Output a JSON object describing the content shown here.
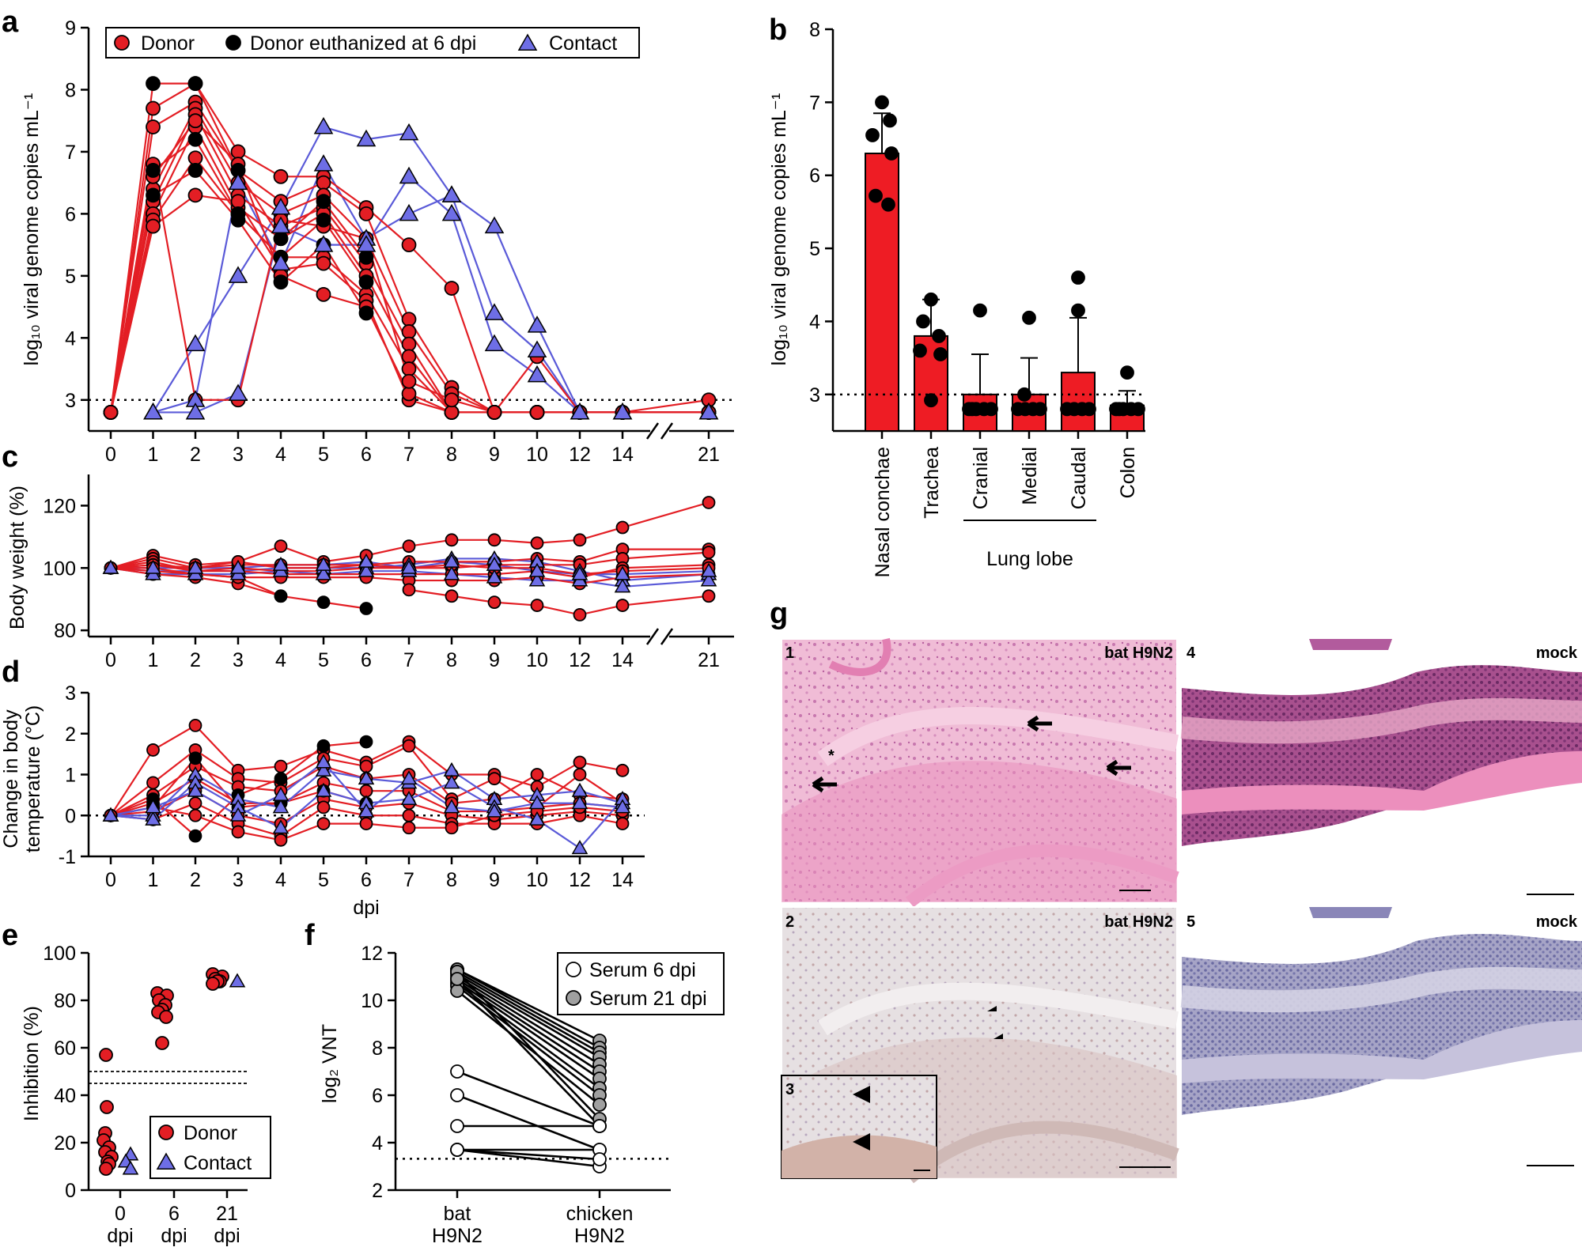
{
  "panels": {
    "a": "a",
    "b": "b",
    "c": "c",
    "d": "d",
    "e": "e",
    "f": "f",
    "g": "g"
  },
  "colors": {
    "donor": "#e31e24",
    "euthanized": "#000000",
    "contact": "#6e6ee6",
    "contact_line": "#5a5ad8",
    "bar": "#ee1c24",
    "grey_dot": "#a0a0a0",
    "he_bg": "#eeb6d2",
    "ihc_bg": "#e2dcdf"
  },
  "chart_data": [
    {
      "id": "a",
      "type": "line",
      "title": "",
      "ylabel": "log₁₀ viral genome copies mL⁻¹",
      "xlabel": "",
      "x_ticks": [
        "0",
        "1",
        "2",
        "3",
        "4",
        "5",
        "6",
        "7",
        "8",
        "9",
        "10",
        "12",
        "14",
        "21"
      ],
      "ylim": [
        2.5,
        9
      ],
      "y_ticks": [
        "3",
        "4",
        "5",
        "6",
        "7",
        "8",
        "9"
      ],
      "detection_limit": 3,
      "legend": [
        "Donor",
        "Donor euthanized at 6 dpi",
        "Contact"
      ],
      "series_group": "donor",
      "series": [
        {
          "name": "Donor",
          "values": [
            2.8,
            7.7,
            8.1,
            7.0,
            6.6,
            6.6,
            6.1,
            5.5,
            4.8,
            2.8,
            2.8,
            2.8,
            2.8,
            3.0
          ]
        },
        {
          "name": "Donor",
          "values": [
            2.8,
            7.4,
            7.8,
            6.7,
            6.2,
            6.5,
            6.0,
            4.3,
            3.2,
            2.8,
            2.8,
            2.8,
            2.8,
            2.8
          ]
        },
        {
          "name": "Donor",
          "values": [
            2.8,
            6.4,
            7.7,
            6.5,
            6.0,
            6.3,
            5.6,
            4.1,
            3.1,
            2.8,
            3.7,
            2.8,
            2.8,
            2.8
          ]
        },
        {
          "name": "Donor",
          "values": [
            2.8,
            6.2,
            7.6,
            6.3,
            5.8,
            6.1,
            5.2,
            3.9,
            2.8,
            2.8,
            2.8,
            2.8,
            2.8,
            2.8
          ]
        },
        {
          "name": "Donor",
          "values": [
            2.8,
            6.0,
            7.4,
            6.1,
            5.6,
            6.0,
            5.0,
            3.7,
            2.8,
            2.8,
            2.8,
            2.8,
            2.8,
            2.8
          ]
        },
        {
          "name": "Donor",
          "values": [
            2.8,
            5.9,
            6.9,
            6.0,
            5.3,
            5.3,
            4.7,
            3.5,
            2.8,
            2.8,
            2.8,
            2.8,
            2.8,
            2.8
          ]
        },
        {
          "name": "Donor",
          "values": [
            2.8,
            5.8,
            6.3,
            6.2,
            5.1,
            5.2,
            4.6,
            3.0,
            2.8,
            2.8,
            2.8,
            2.8,
            2.8,
            2.8
          ]
        },
        {
          "name": "Donor",
          "values": [
            2.8,
            6.6,
            7.5,
            6.8,
            5.0,
            4.7,
            4.5,
            3.1,
            2.8,
            2.8,
            2.8,
            2.8,
            2.8,
            2.8
          ]
        },
        {
          "name": "Donor",
          "values": [
            2.8,
            6.8,
            3.0,
            3.0,
            5.9,
            5.8,
            5.6,
            3.3,
            3.0,
            2.8,
            2.8,
            2.8,
            2.8,
            2.8
          ]
        }
      ],
      "euthanized": [
        {
          "name": "Donor euthanized at 6 dpi",
          "values": [
            2.8,
            8.1,
            8.1,
            6.7,
            5.6,
            6.2,
            5.3
          ]
        },
        {
          "name": "Donor euthanized at 6 dpi",
          "values": [
            2.8,
            6.7,
            7.2,
            6.0,
            5.3,
            5.9,
            4.9
          ]
        },
        {
          "name": "Donor euthanized at 6 dpi",
          "values": [
            2.8,
            6.3,
            6.7,
            5.9,
            4.9,
            5.5,
            4.4
          ]
        }
      ],
      "contact": [
        {
          "name": "Contact",
          "values": [
            null,
            2.8,
            3.9,
            5.0,
            6.1,
            7.4,
            7.2,
            7.3,
            6.3,
            5.8,
            4.2,
            2.8,
            2.8,
            2.8
          ]
        },
        {
          "name": "Contact",
          "values": [
            null,
            2.8,
            3.0,
            6.5,
            5.2,
            6.8,
            5.6,
            6.0,
            6.3,
            4.4,
            3.8,
            2.8,
            2.8,
            2.8
          ]
        },
        {
          "name": "Contact",
          "values": [
            null,
            2.8,
            2.8,
            3.1,
            5.8,
            5.5,
            5.5,
            6.6,
            6.0,
            3.9,
            3.4,
            2.8,
            2.8,
            2.8
          ]
        }
      ]
    },
    {
      "id": "b",
      "type": "bar",
      "ylabel": "log₁₀ viral genome copies mL⁻¹",
      "categories": [
        "Nasal conchae",
        "Trachea",
        "Cranial",
        "Medial",
        "Caudal",
        "Colon"
      ],
      "group_label": "Lung lobe",
      "values": [
        6.3,
        3.8,
        3.0,
        3.0,
        3.3,
        2.85
      ],
      "errors": [
        0.55,
        0.5,
        0.55,
        0.5,
        0.75,
        0.2
      ],
      "points": [
        [
          7.0,
          6.75,
          6.55,
          6.3,
          5.72,
          5.6
        ],
        [
          4.3,
          4.0,
          3.8,
          3.6,
          3.55,
          2.92
        ],
        [
          4.15,
          2.8,
          2.8,
          2.8,
          2.8,
          2.8
        ],
        [
          4.05,
          3.0,
          2.8,
          2.8,
          2.8,
          2.8
        ],
        [
          4.6,
          4.15,
          2.8,
          2.8,
          2.8,
          2.8
        ],
        [
          3.3,
          2.8,
          2.8,
          2.8,
          2.8,
          2.8
        ]
      ],
      "ylim": [
        2.5,
        8
      ],
      "y_ticks": [
        "3",
        "4",
        "5",
        "6",
        "7",
        "8"
      ],
      "detection_limit": 3
    },
    {
      "id": "c",
      "type": "line",
      "ylabel": "Body weight (%)",
      "x_ticks": [
        "0",
        "1",
        "2",
        "3",
        "4",
        "5",
        "6",
        "7",
        "8",
        "9",
        "10",
        "12",
        "14",
        "21"
      ],
      "ylim": [
        78,
        130
      ],
      "y_ticks": [
        "80",
        "100",
        "120"
      ],
      "series": [
        {
          "group": "donor",
          "values": [
            100,
            104,
            101,
            102,
            107,
            102,
            104,
            107,
            109,
            109,
            108,
            109,
            113,
            121
          ]
        },
        {
          "group": "donor",
          "values": [
            100,
            103,
            100,
            101,
            101,
            101,
            101,
            102,
            102,
            102,
            103,
            102,
            106,
            106
          ]
        },
        {
          "group": "donor",
          "values": [
            100,
            102,
            99,
            100,
            99,
            99,
            100,
            100,
            100,
            101,
            101,
            101,
            103,
            105
          ]
        },
        {
          "group": "donor",
          "values": [
            100,
            101,
            99,
            99,
            98,
            98,
            98,
            98,
            98,
            98,
            99,
            97,
            100,
            101
          ]
        },
        {
          "group": "donor",
          "values": [
            100,
            99,
            98,
            97,
            97,
            97,
            97,
            96,
            96,
            96,
            97,
            95,
            97,
            98
          ]
        },
        {
          "group": "donor",
          "values": [
            100,
            98,
            97,
            95,
            91,
            null,
            null,
            93,
            91,
            89,
            88,
            85,
            88,
            91
          ]
        },
        {
          "group": "donor",
          "values": [
            100,
            101,
            100,
            102,
            100,
            100,
            101,
            100,
            101,
            100,
            100,
            98,
            99,
            100
          ]
        },
        {
          "group": "euthanized",
          "values": [
            100,
            100,
            98,
            97,
            91,
            89,
            87
          ]
        },
        {
          "group": "contact",
          "values": [
            100,
            99,
            99,
            99,
            100,
            100,
            100,
            101,
            103,
            103,
            102,
            99,
            96,
            98
          ]
        },
        {
          "group": "contact",
          "values": [
            100,
            98,
            98,
            98,
            99,
            98,
            99,
            99,
            98,
            97,
            96,
            96,
            94,
            96
          ]
        },
        {
          "group": "contact",
          "values": [
            100,
            100,
            100,
            100,
            101,
            101,
            102,
            100,
            102,
            101,
            99,
            98,
            98,
            99
          ]
        }
      ]
    },
    {
      "id": "d",
      "type": "line",
      "ylabel": "Change in body temperature (°C)",
      "ylabel_lines": [
        "Change in body",
        "temperature (°C)"
      ],
      "xlabel": "dpi",
      "x_ticks": [
        "0",
        "1",
        "2",
        "3",
        "4",
        "5",
        "6",
        "7",
        "8",
        "9",
        "10",
        "12",
        "14"
      ],
      "ylim": [
        -1,
        3
      ],
      "y_ticks": [
        "-1",
        "0",
        "1",
        "2",
        "3"
      ],
      "series": [
        {
          "group": "donor",
          "values": [
            0,
            1.6,
            2.2,
            1.1,
            1.2,
            1.6,
            1.3,
            1.8,
            1.0,
            1.0,
            0.7,
            1.3,
            1.1
          ]
        },
        {
          "group": "donor",
          "values": [
            0,
            0.8,
            1.6,
            0.9,
            0.8,
            1.4,
            1.2,
            1.7,
            0.4,
            0.9,
            0.2,
            1.0,
            0.3
          ]
        },
        {
          "group": "donor",
          "values": [
            0,
            0.5,
            1.2,
            0.7,
            0.6,
            1.2,
            0.9,
            1.0,
            0.3,
            0.4,
            1.0,
            0.5,
            0.4
          ]
        },
        {
          "group": "donor",
          "values": [
            0,
            0.3,
            0.9,
            0.3,
            0.3,
            0.8,
            0.6,
            0.6,
            0.1,
            0.1,
            0.2,
            0.3,
            0.2
          ]
        },
        {
          "group": "donor",
          "values": [
            0,
            0.1,
            0.6,
            0.0,
            -0.2,
            0.4,
            0.2,
            0.3,
            0.0,
            -0.1,
            0.0,
            0.1,
            0.0
          ]
        },
        {
          "group": "donor",
          "values": [
            0,
            -0.1,
            0.3,
            -0.2,
            -0.5,
            0.2,
            0.0,
            0.0,
            -0.2,
            -0.2,
            -0.2,
            0.0,
            -0.2
          ]
        },
        {
          "group": "donor",
          "values": [
            0,
            0.2,
            0.0,
            -0.4,
            -0.6,
            -0.2,
            -0.2,
            -0.3,
            -0.3,
            0.0,
            0.1,
            0.2,
            0.1
          ]
        },
        {
          "group": "euthanized",
          "values": [
            0,
            0.4,
            -0.5,
            0.5,
            0.9,
            1.7,
            1.8
          ]
        },
        {
          "group": "euthanized",
          "values": [
            0,
            0.2,
            1.4,
            0.2,
            0.3,
            0.6,
            0.3
          ]
        },
        {
          "group": "contact",
          "values": [
            0,
            0.0,
            1.0,
            0.4,
            0.2,
            1.1,
            0.9,
            0.8,
            1.1,
            0.4,
            0.5,
            0.6,
            0.3
          ]
        },
        {
          "group": "contact",
          "values": [
            0,
            -0.1,
            0.8,
            0.2,
            -0.3,
            0.6,
            0.3,
            0.4,
            0.8,
            0.2,
            -0.1,
            -0.8,
            0.4
          ]
        },
        {
          "group": "contact",
          "values": [
            0,
            0.2,
            0.6,
            0.0,
            0.5,
            1.3,
            0.1,
            0.9,
            0.2,
            0.1,
            0.3,
            0.3,
            0.2
          ]
        }
      ]
    },
    {
      "id": "e",
      "type": "scatter",
      "ylabel": "Inhibition (%)",
      "categories": [
        "0\ndpi",
        "6\ndpi",
        "21\ndpi"
      ],
      "category_lines": [
        [
          "0",
          "dpi"
        ],
        [
          "6",
          "dpi"
        ],
        [
          "21",
          "dpi"
        ]
      ],
      "ylim": [
        0,
        100
      ],
      "y_ticks": [
        "0",
        "20",
        "40",
        "60",
        "80",
        "100"
      ],
      "thresholds": [
        45,
        50
      ],
      "legend": [
        "Donor",
        "Contact"
      ],
      "donor": [
        [
          57,
          35,
          24,
          21,
          18,
          16,
          14,
          12,
          11,
          9
        ],
        [
          83,
          82,
          80,
          78,
          76,
          75,
          73,
          62
        ],
        [
          91,
          90,
          89,
          88,
          88,
          87
        ]
      ],
      "contact": [
        [],
        [],
        [
          88
        ]
      ],
      "contact_day0": [
        15,
        12,
        9
      ]
    },
    {
      "id": "f",
      "type": "line",
      "ylabel": "log₂ VNT",
      "categories": [
        "bat H9N2",
        "chicken H9N2"
      ],
      "category_lines": [
        [
          "bat",
          "H9N2"
        ],
        [
          "chicken",
          "H9N2"
        ]
      ],
      "ylim": [
        2,
        12
      ],
      "y_ticks": [
        "2",
        "4",
        "6",
        "8",
        "10",
        "12"
      ],
      "detection_limit": 3.32,
      "legend": [
        "Serum 6 dpi",
        "Serum 21 dpi"
      ],
      "pairs_21": [
        [
          11.3,
          8.3
        ],
        [
          11.3,
          8.0
        ],
        [
          11.2,
          7.8
        ],
        [
          11.1,
          7.6
        ],
        [
          11.0,
          7.3
        ],
        [
          10.9,
          7.0
        ],
        [
          10.8,
          6.7
        ],
        [
          10.7,
          6.3
        ],
        [
          10.6,
          6.0
        ],
        [
          10.4,
          5.6
        ],
        [
          11.2,
          5.0
        ],
        [
          10.9,
          4.7
        ]
      ],
      "pairs_6": [
        [
          7.0,
          4.7
        ],
        [
          6.0,
          3.7
        ],
        [
          4.7,
          4.7
        ],
        [
          3.7,
          3.7
        ],
        [
          3.7,
          3.0
        ],
        [
          3.7,
          3.3
        ]
      ]
    }
  ],
  "histology": {
    "tiles": [
      {
        "num": "1",
        "label": "bat H9N2",
        "stain": "he"
      },
      {
        "num": "4",
        "label": "mock",
        "stain": "he"
      },
      {
        "num": "2",
        "label": "bat H9N2",
        "stain": "ihc"
      },
      {
        "num": "5",
        "label": "mock",
        "stain": "ihc"
      }
    ],
    "inset_num": "3",
    "asterisk": "*"
  }
}
